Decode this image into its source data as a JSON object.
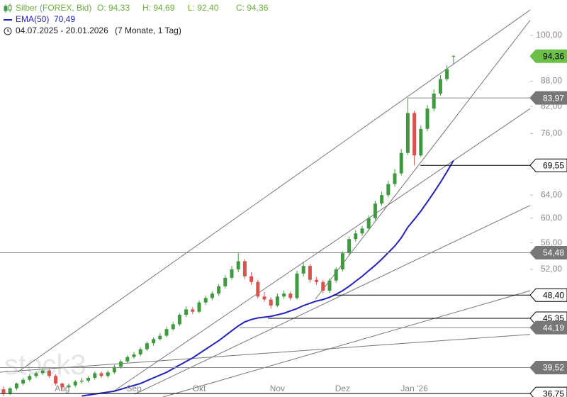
{
  "chart_data": {
    "type": "candlestick",
    "title": "Silber (FOREX, Bid)",
    "ohlc_text": [
      "O: 94,33",
      "H: 94,69",
      "L: 92,40",
      "C: 94,36"
    ],
    "ema_label": "EMA(50)",
    "ema_value_text": "70,49",
    "period": "04.07.2025 - 20.01.2026",
    "period_note": "(7 Monate, 1 Tag)",
    "watermark": "stock3",
    "log_scale": true,
    "ylim": [
      36.4,
      110.4
    ],
    "yticks": [
      {
        "value": 100,
        "label": "100,00"
      },
      {
        "value": 88,
        "label": "88,00"
      },
      {
        "value": 82,
        "label": "82,00"
      },
      {
        "value": 76,
        "label": "76,00"
      },
      {
        "value": 64,
        "label": "64,00"
      },
      {
        "value": 60,
        "label": "60,00"
      },
      {
        "value": 56,
        "label": "56,00"
      },
      {
        "value": 52,
        "label": "52,00"
      }
    ],
    "categories": [
      null,
      null,
      null,
      null,
      null,
      null,
      null,
      null,
      null,
      "Aug",
      null,
      null,
      null,
      null,
      null,
      null,
      null,
      null,
      null,
      null,
      "Sep",
      null,
      null,
      null,
      null,
      null,
      null,
      null,
      null,
      null,
      "Okt",
      null,
      null,
      null,
      null,
      null,
      null,
      null,
      null,
      null,
      null,
      null,
      "Nov",
      null,
      null,
      null,
      null,
      null,
      null,
      null,
      null,
      null,
      "Dez",
      null,
      null,
      null,
      null,
      null,
      null,
      null,
      null,
      null,
      null,
      "Jan '26",
      null,
      null,
      null,
      null,
      null,
      null
    ],
    "up_color": "#3f9a3f",
    "down_color": "#d9534f",
    "open": [
      37.2,
      36.8,
      37.3,
      37.8,
      38.2,
      38.6,
      38.9,
      39.2,
      38.6,
      37.8,
      37.4,
      37.6,
      38.0,
      38.1,
      38.4,
      38.9,
      38.6,
      39.0,
      39.6,
      40.2,
      40.7,
      41.0,
      41.6,
      42.3,
      42.8,
      43.2,
      44.0,
      44.6,
      45.8,
      46.5,
      46.2,
      47.4,
      48.0,
      48.6,
      49.6,
      50.8,
      52.0,
      53.2,
      51.0,
      50.2,
      48.2,
      47.8,
      47.0,
      48.2,
      48.6,
      48.0,
      51.4,
      52.5,
      50.5,
      50.2,
      49.0,
      50.4,
      52.0,
      54.4,
      56.6,
      57.5,
      58.3,
      60.0,
      62.5,
      64.0,
      66.0,
      68.0,
      72.0,
      80.5,
      71.5,
      77.0,
      81.5,
      85.0,
      88.5,
      94.33
    ],
    "high": [
      37.5,
      37.4,
      37.9,
      38.4,
      38.8,
      39.1,
      39.5,
      39.4,
      38.8,
      37.9,
      37.8,
      38.2,
      38.4,
      38.6,
      39.1,
      39.1,
      39.2,
      39.8,
      40.4,
      40.9,
      41.3,
      41.8,
      42.5,
      43.0,
      43.5,
      44.3,
      44.9,
      46.0,
      46.9,
      46.8,
      47.7,
      48.3,
      48.9,
      49.9,
      51.2,
      52.5,
      54.48,
      53.5,
      51.6,
      50.5,
      48.8,
      48.1,
      48.6,
      49.0,
      48.9,
      51.8,
      53.0,
      52.8,
      50.9,
      50.5,
      50.7,
      52.3,
      54.7,
      57.0,
      58.0,
      58.7,
      60.5,
      63.0,
      64.6,
      66.6,
      68.8,
      72.8,
      83.97,
      81.0,
      77.8,
      82.3,
      86.0,
      89.5,
      92.0,
      94.69
    ],
    "low": [
      36.5,
      36.6,
      37.1,
      37.6,
      38.0,
      38.4,
      38.7,
      38.4,
      37.6,
      37.1,
      37.2,
      37.4,
      37.8,
      37.9,
      38.2,
      38.4,
      38.4,
      38.8,
      39.4,
      40.0,
      40.5,
      40.8,
      41.4,
      42.0,
      42.6,
      43.0,
      43.8,
      44.4,
      45.5,
      45.9,
      46.0,
      47.1,
      47.7,
      48.3,
      49.3,
      50.5,
      51.6,
      50.6,
      49.8,
      47.9,
      47.5,
      46.6,
      46.8,
      47.9,
      47.7,
      47.8,
      51.0,
      50.1,
      49.8,
      48.6,
      48.7,
      50.1,
      51.7,
      54.1,
      56.2,
      57.1,
      57.9,
      59.6,
      62.1,
      63.6,
      65.5,
      67.6,
      71.6,
      69.55,
      71.2,
      76.5,
      80.9,
      84.5,
      88.0,
      92.4
    ],
    "close": [
      36.8,
      37.3,
      37.8,
      38.2,
      38.6,
      38.9,
      39.2,
      38.6,
      37.8,
      37.4,
      37.6,
      38.0,
      38.1,
      38.4,
      38.9,
      38.6,
      39.0,
      39.6,
      40.2,
      40.7,
      41.0,
      41.6,
      42.3,
      42.8,
      43.2,
      44.0,
      44.6,
      45.8,
      46.5,
      46.2,
      47.4,
      48.0,
      48.6,
      49.6,
      50.8,
      52.0,
      53.2,
      51.0,
      50.2,
      48.2,
      47.8,
      47.0,
      48.2,
      48.6,
      48.0,
      51.4,
      52.5,
      50.5,
      50.2,
      49.0,
      50.4,
      52.0,
      54.4,
      56.6,
      57.5,
      58.3,
      60.0,
      62.5,
      64.0,
      66.0,
      68.0,
      72.0,
      80.5,
      71.5,
      77.0,
      81.5,
      85.0,
      88.5,
      91.0,
      94.36
    ],
    "ema": {
      "name": "EMA(50)",
      "color": "#2222bb",
      "values": [
        null,
        null,
        null,
        null,
        null,
        null,
        null,
        null,
        null,
        null,
        null,
        null,
        36.5,
        36.6,
        36.7,
        36.8,
        36.9,
        37.0,
        37.2,
        37.4,
        37.6,
        37.8,
        38.1,
        38.4,
        38.7,
        39.0,
        39.4,
        39.8,
        40.2,
        40.6,
        41.1,
        41.6,
        42.1,
        42.6,
        43.2,
        43.8,
        44.4,
        44.9,
        45.2,
        45.4,
        45.5,
        45.6,
        45.8,
        46.0,
        46.3,
        46.6,
        47.0,
        47.3,
        47.6,
        47.8,
        48.1,
        48.5,
        49.0,
        49.6,
        50.3,
        51.0,
        51.8,
        52.6,
        53.5,
        54.5,
        55.5,
        56.8,
        58.5,
        59.8,
        61.2,
        62.8,
        64.5,
        66.3,
        68.3,
        70.49
      ]
    },
    "levels": [
      {
        "value": 94.36,
        "label": "94,36",
        "style": "last"
      },
      {
        "value": 83.97,
        "label": "83,97",
        "style": "gray"
      },
      {
        "value": 69.55,
        "label": "69,55",
        "style": "black"
      },
      {
        "value": 54.48,
        "label": "54,48",
        "style": "gray"
      },
      {
        "value": 48.4,
        "label": "48,40",
        "style": "black"
      },
      {
        "value": 45.35,
        "label": "45,35",
        "style": "black"
      },
      {
        "value": 44.19,
        "label": "44,19",
        "style": "gray"
      },
      {
        "value": 39.52,
        "label": "39,52",
        "style": "gray"
      },
      {
        "value": 36.75,
        "label": "36,75",
        "style": "black"
      }
    ]
  }
}
